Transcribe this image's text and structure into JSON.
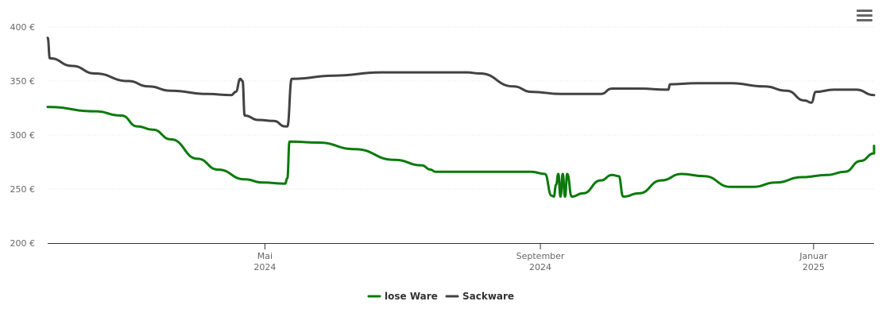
{
  "menu": {
    "icon": "hamburger-icon"
  },
  "chart_data": {
    "type": "line",
    "title": "",
    "xlabel": "",
    "ylabel": "",
    "ylim": [
      200,
      400
    ],
    "y_ticks": [
      "200 €",
      "250 €",
      "300 €",
      "350 €",
      "400 €"
    ],
    "x_ticks": [
      {
        "month": "Mai",
        "year": "2024",
        "date": "2024-05-01"
      },
      {
        "month": "September",
        "year": "2024",
        "date": "2024-09-01"
      },
      {
        "month": "Januar",
        "year": "2025",
        "date": "2025-01-01"
      }
    ],
    "x_range": [
      "2024-01-25",
      "2025-01-28"
    ],
    "grid": true,
    "legend_position": "bottom-center",
    "series": [
      {
        "name": "lose Ware",
        "color": "#0a7a0a",
        "points": [
          [
            "2024-01-25",
            326
          ],
          [
            "2024-02-15",
            322
          ],
          [
            "2024-02-27",
            318
          ],
          [
            "2024-03-05",
            308
          ],
          [
            "2024-03-12",
            305
          ],
          [
            "2024-03-20",
            296
          ],
          [
            "2024-04-01",
            278
          ],
          [
            "2024-04-10",
            268
          ],
          [
            "2024-04-22",
            259
          ],
          [
            "2024-04-30",
            256
          ],
          [
            "2024-05-10",
            255
          ],
          [
            "2024-05-11",
            260
          ],
          [
            "2024-05-12",
            294
          ],
          [
            "2024-05-25",
            293
          ],
          [
            "2024-06-10",
            287
          ],
          [
            "2024-06-28",
            277
          ],
          [
            "2024-07-10",
            272
          ],
          [
            "2024-07-14",
            268
          ],
          [
            "2024-07-16",
            266
          ],
          [
            "2024-08-10",
            266
          ],
          [
            "2024-08-28",
            266
          ],
          [
            "2024-09-03",
            264
          ],
          [
            "2024-09-06",
            244
          ],
          [
            "2024-09-07",
            243
          ],
          [
            "2024-09-08",
            254
          ],
          [
            "2024-09-09",
            264
          ],
          [
            "2024-09-10",
            243
          ],
          [
            "2024-09-11",
            264
          ],
          [
            "2024-09-12",
            243
          ],
          [
            "2024-09-13",
            264
          ],
          [
            "2024-09-15",
            243
          ],
          [
            "2024-09-20",
            246
          ],
          [
            "2024-09-28",
            258
          ],
          [
            "2024-10-03",
            263
          ],
          [
            "2024-10-06",
            262
          ],
          [
            "2024-10-08",
            243
          ],
          [
            "2024-10-15",
            246
          ],
          [
            "2024-10-25",
            258
          ],
          [
            "2024-11-03",
            264
          ],
          [
            "2024-11-13",
            262
          ],
          [
            "2024-11-25",
            252
          ],
          [
            "2024-12-05",
            252
          ],
          [
            "2024-12-15",
            256
          ],
          [
            "2024-12-27",
            261
          ],
          [
            "2025-01-07",
            263
          ],
          [
            "2025-01-15",
            266
          ],
          [
            "2025-01-22",
            276
          ],
          [
            "2025-01-30",
            283
          ],
          [
            "2025-02-05",
            284
          ],
          [
            "2025-02-05",
            290
          ]
        ]
      },
      {
        "name": "Sackware",
        "color": "#424242",
        "points": [
          [
            "2024-01-25",
            390
          ],
          [
            "2024-01-26",
            371
          ],
          [
            "2024-02-05",
            364
          ],
          [
            "2024-02-15",
            357
          ],
          [
            "2024-03-01",
            350
          ],
          [
            "2024-03-10",
            345
          ],
          [
            "2024-03-20",
            341
          ],
          [
            "2024-04-05",
            338
          ],
          [
            "2024-04-16",
            337
          ],
          [
            "2024-04-18",
            340
          ],
          [
            "2024-04-20",
            352
          ],
          [
            "2024-04-21",
            350
          ],
          [
            "2024-04-22",
            318
          ],
          [
            "2024-04-28",
            314
          ],
          [
            "2024-05-05",
            313
          ],
          [
            "2024-05-10",
            308
          ],
          [
            "2024-05-11",
            308
          ],
          [
            "2024-05-13",
            352
          ],
          [
            "2024-06-01",
            355
          ],
          [
            "2024-06-22",
            358
          ],
          [
            "2024-07-10",
            358
          ],
          [
            "2024-07-30",
            358
          ],
          [
            "2024-08-05",
            357
          ],
          [
            "2024-08-20",
            345
          ],
          [
            "2024-08-28",
            340
          ],
          [
            "2024-09-10",
            338
          ],
          [
            "2024-09-28",
            338
          ],
          [
            "2024-10-03",
            343
          ],
          [
            "2024-10-15",
            343
          ],
          [
            "2024-10-28",
            342
          ],
          [
            "2024-10-29",
            347
          ],
          [
            "2024-11-10",
            348
          ],
          [
            "2024-11-25",
            348
          ],
          [
            "2024-12-10",
            345
          ],
          [
            "2024-12-20",
            341
          ],
          [
            "2024-12-28",
            332
          ],
          [
            "2024-12-31",
            330
          ],
          [
            "2025-01-02",
            340
          ],
          [
            "2025-01-10",
            342
          ],
          [
            "2025-01-20",
            342
          ],
          [
            "2025-02-05",
            337
          ]
        ]
      }
    ]
  }
}
